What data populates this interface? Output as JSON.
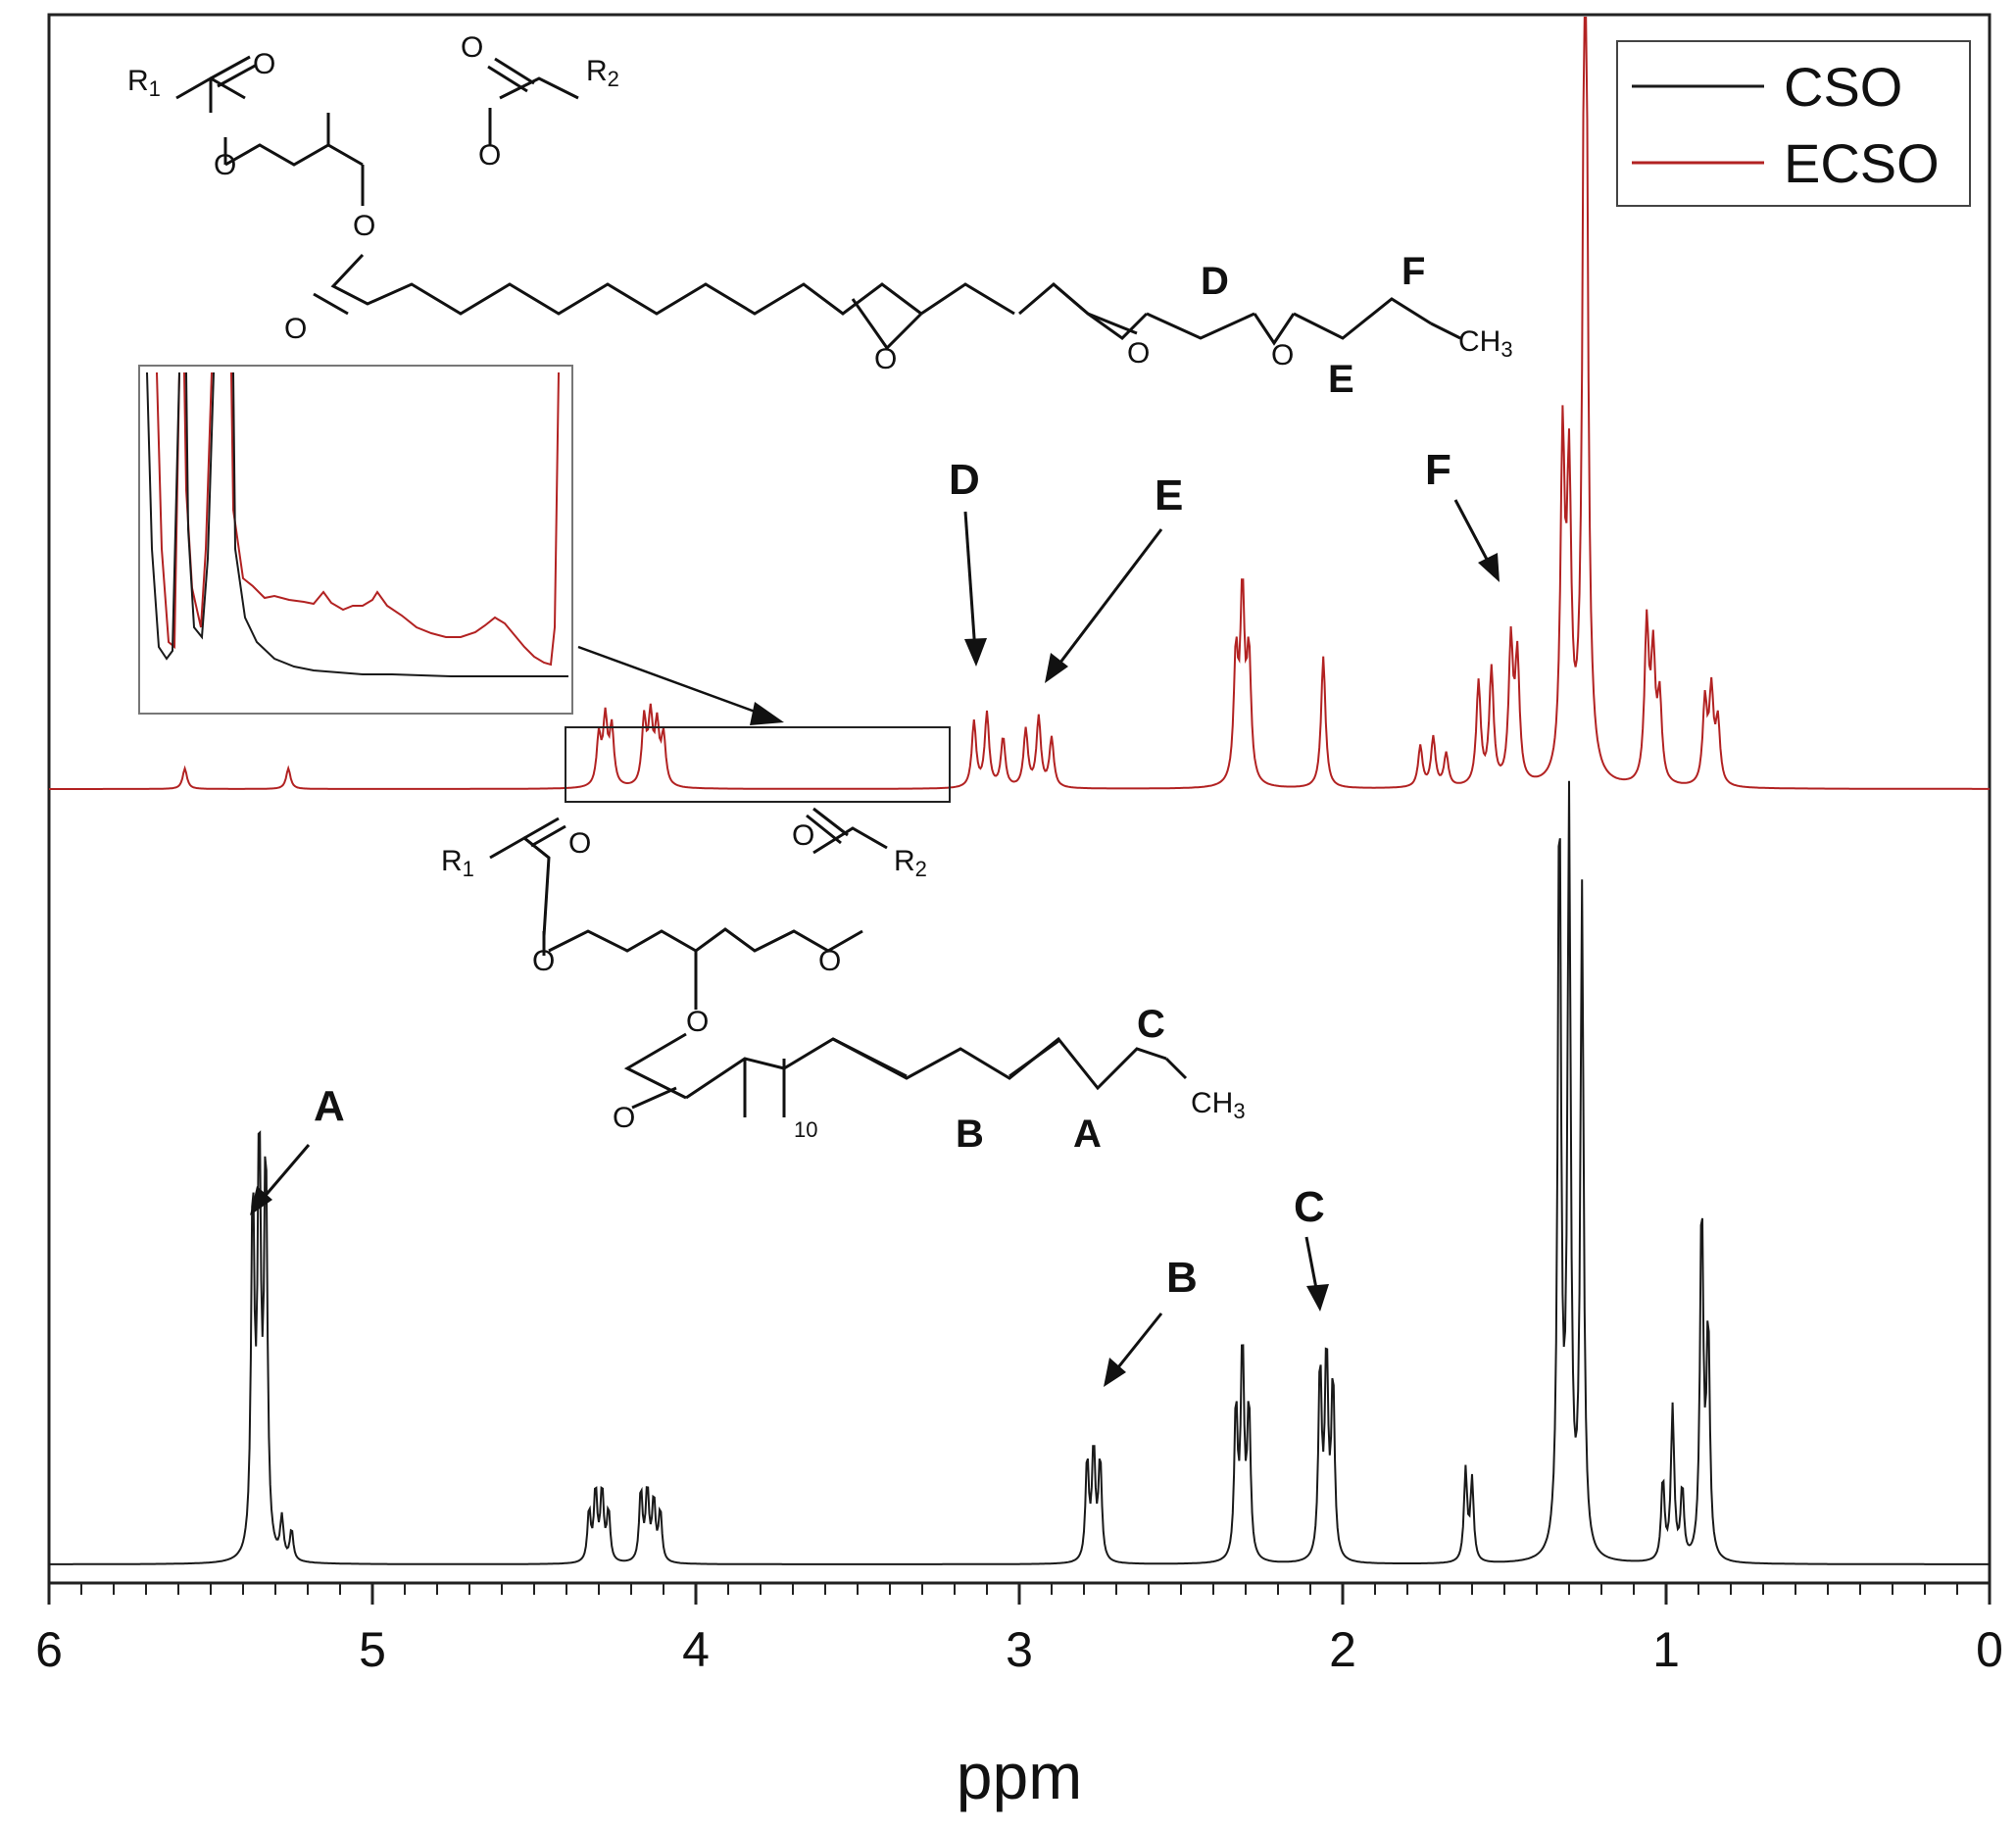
{
  "chart_data": {
    "type": "line",
    "title": "",
    "xlabel": "ppm",
    "ylabel": "",
    "xlim": [
      6,
      0
    ],
    "x_reversed": true,
    "x_ticks": [
      "6",
      "5",
      "4",
      "3",
      "2",
      "1",
      "0"
    ],
    "grid": false,
    "legend": {
      "placement": "top-right",
      "entries": [
        "CSO",
        "ECSO"
      ]
    },
    "colors": {
      "CSO": "#1a1a1a",
      "ECSO": "#b22222"
    },
    "series": [
      {
        "name": "CSO",
        "peaks_ppm_relative_height": [
          [
            5.35,
            0.8
          ],
          [
            5.33,
            0.78
          ],
          [
            5.37,
            0.7
          ],
          [
            5.28,
            0.08
          ],
          [
            5.25,
            0.06
          ],
          [
            4.33,
            0.1
          ],
          [
            4.31,
            0.14
          ],
          [
            4.29,
            0.14
          ],
          [
            4.27,
            0.1
          ],
          [
            4.17,
            0.14
          ],
          [
            4.15,
            0.14
          ],
          [
            4.13,
            0.12
          ],
          [
            4.11,
            0.1
          ],
          [
            2.79,
            0.2
          ],
          [
            2.77,
            0.22
          ],
          [
            2.75,
            0.2
          ],
          [
            2.33,
            0.3
          ],
          [
            2.31,
            0.42
          ],
          [
            2.29,
            0.3
          ],
          [
            2.07,
            0.38
          ],
          [
            2.05,
            0.4
          ],
          [
            2.03,
            0.35
          ],
          [
            1.62,
            0.18
          ],
          [
            1.6,
            0.16
          ],
          [
            1.33,
            1.5
          ],
          [
            1.3,
            1.45
          ],
          [
            1.26,
            1.3
          ],
          [
            1.01,
            0.16
          ],
          [
            0.98,
            0.3
          ],
          [
            0.95,
            0.14
          ],
          [
            0.89,
            0.7
          ],
          [
            0.87,
            0.45
          ]
        ]
      },
      {
        "name": "ECSO",
        "peaks_ppm_relative_height": [
          [
            5.58,
            0.05
          ],
          [
            5.26,
            0.05
          ],
          [
            4.3,
            0.12
          ],
          [
            4.28,
            0.16
          ],
          [
            4.26,
            0.14
          ],
          [
            4.16,
            0.16
          ],
          [
            4.14,
            0.16
          ],
          [
            4.12,
            0.14
          ],
          [
            4.1,
            0.12
          ],
          [
            3.14,
            0.16
          ],
          [
            3.1,
            0.18
          ],
          [
            3.05,
            0.12
          ],
          [
            2.98,
            0.14
          ],
          [
            2.94,
            0.17
          ],
          [
            2.9,
            0.12
          ],
          [
            2.33,
            0.3
          ],
          [
            2.31,
            0.45
          ],
          [
            2.29,
            0.3
          ],
          [
            2.06,
            0.32
          ],
          [
            1.76,
            0.1
          ],
          [
            1.72,
            0.12
          ],
          [
            1.68,
            0.08
          ],
          [
            1.58,
            0.25
          ],
          [
            1.54,
            0.28
          ],
          [
            1.48,
            0.34
          ],
          [
            1.46,
            0.3
          ],
          [
            1.32,
            0.8
          ],
          [
            1.3,
            0.7
          ],
          [
            1.25,
            2.5
          ],
          [
            1.06,
            0.38
          ],
          [
            1.04,
            0.3
          ],
          [
            1.02,
            0.2
          ],
          [
            0.88,
            0.2
          ],
          [
            0.86,
            0.22
          ],
          [
            0.84,
            0.15
          ]
        ],
        "baseline_offset": true
      }
    ],
    "annotations": {
      "peak_labels": [
        "A",
        "B",
        "C",
        "D",
        "E",
        "F"
      ],
      "structure_cso": {
        "r1": "R",
        "r1_sub": "1",
        "r2": "R",
        "r2_sub": "2",
        "oxygen": "O",
        "repeat": "10",
        "methyl": "CH",
        "methyl_sub": "3",
        "labels": [
          "B",
          "A",
          "C"
        ]
      },
      "structure_ecso": {
        "r1": "R",
        "r1_sub": "1",
        "r2": "R",
        "r2_sub": "2",
        "oxygen": "O",
        "methyl": "CH",
        "methyl_sub": "3",
        "labels": [
          "D",
          "F",
          "E"
        ]
      }
    }
  }
}
